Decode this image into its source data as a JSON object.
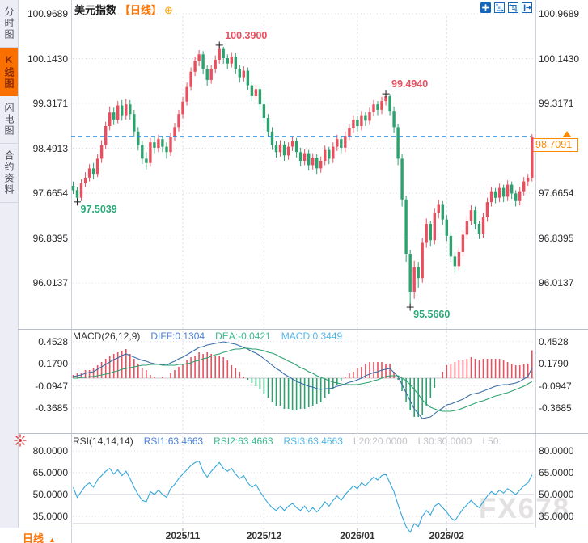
{
  "window": {
    "title": "美元指数",
    "period_tag": "【日线】",
    "add_icon_glyph": "⊕",
    "watermark": "FX678",
    "bottom_period_label": "日线",
    "bottom_period_arrow": "▲"
  },
  "sidebar": {
    "tabs": [
      {
        "label": "分时图",
        "active": false
      },
      {
        "label": "K线图",
        "active": true
      },
      {
        "label": "闪电图",
        "active": false
      },
      {
        "label": "合约资料",
        "active": false
      }
    ]
  },
  "toolbar": {
    "icons": [
      "crosshair-icon",
      "scale-x-icon",
      "scale-y-icon",
      "exit-icon"
    ]
  },
  "colors": {
    "up": "#e9505f",
    "down": "#2ca26e",
    "annotation_up": "#e9505f",
    "annotation_down": "#2aa876",
    "diff_line": "#3a6ea8",
    "dea_line": "#2ca26e",
    "rsi_line": "#35a7db",
    "price_line": "#1e88e5",
    "tag": "#ff8c00",
    "accent_orange": "#ff7300",
    "icon_blue": "#1466b8",
    "burst_red": "#e53030",
    "grid": "#dcdde6",
    "axis_text": "#2b2b2b",
    "watermark": "#e3e1e1"
  },
  "chart_data": {
    "type": "candlestick",
    "symbol": "美元指数",
    "period": "日线",
    "x_ticks": [
      {
        "label": "2025/11",
        "day": 27
      },
      {
        "label": "2025/12",
        "day": 47
      },
      {
        "label": "2026/01",
        "day": 70
      },
      {
        "label": "2026/02",
        "day": 92
      }
    ],
    "main": {
      "y_ticks": [
        "100.9689",
        "100.1430",
        "99.3171",
        "98.4913",
        "97.6654",
        "96.8395",
        "96.0137"
      ],
      "current_price": 98.7091,
      "current_price_label": "98.7091",
      "annotations": [
        {
          "text": "100.3900",
          "day": 36,
          "price": 100.39,
          "side": "high"
        },
        {
          "text": "99.4940",
          "day": 77,
          "price": 99.494,
          "side": "high"
        },
        {
          "text": "97.5039",
          "day": 1,
          "price": 97.5039,
          "side": "low"
        },
        {
          "text": "95.5660",
          "day": 83,
          "price": 95.566,
          "side": "low"
        }
      ],
      "candles": [
        [
          97.8,
          97.88,
          97.65,
          97.72
        ],
        [
          97.72,
          97.78,
          97.504,
          97.58
        ],
        [
          97.58,
          97.92,
          97.52,
          97.85
        ],
        [
          97.85,
          98.05,
          97.78,
          97.95
        ],
        [
          97.95,
          98.2,
          97.88,
          98.12
        ],
        [
          98.12,
          98.22,
          97.92,
          98.02
        ],
        [
          98.02,
          98.38,
          97.96,
          98.3
        ],
        [
          98.3,
          98.64,
          98.22,
          98.55
        ],
        [
          98.55,
          98.98,
          98.48,
          98.9
        ],
        [
          98.9,
          99.26,
          98.82,
          99.15
        ],
        [
          99.15,
          99.24,
          98.92,
          99.02
        ],
        [
          99.02,
          99.36,
          98.95,
          99.28
        ],
        [
          99.28,
          99.38,
          99.0,
          99.1
        ],
        [
          99.1,
          99.4,
          99.02,
          99.3
        ],
        [
          99.3,
          99.38,
          99.02,
          99.12
        ],
        [
          99.12,
          99.2,
          98.7,
          98.8
        ],
        [
          98.8,
          98.88,
          98.45,
          98.55
        ],
        [
          98.55,
          98.62,
          98.2,
          98.3
        ],
        [
          98.3,
          98.42,
          98.1,
          98.22
        ],
        [
          98.22,
          98.68,
          98.15,
          98.6
        ],
        [
          98.6,
          98.7,
          98.4,
          98.5
        ],
        [
          98.5,
          98.74,
          98.42,
          98.66
        ],
        [
          98.66,
          98.72,
          98.42,
          98.52
        ],
        [
          98.52,
          98.6,
          98.3,
          98.42
        ],
        [
          98.42,
          98.78,
          98.35,
          98.7
        ],
        [
          98.7,
          98.96,
          98.62,
          98.88
        ],
        [
          98.88,
          99.2,
          98.8,
          99.12
        ],
        [
          99.12,
          99.44,
          99.04,
          99.35
        ],
        [
          99.35,
          99.7,
          99.28,
          99.62
        ],
        [
          99.62,
          99.98,
          99.55,
          99.9
        ],
        [
          99.9,
          100.18,
          99.82,
          100.1
        ],
        [
          100.1,
          100.3,
          100.0,
          100.22
        ],
        [
          100.22,
          100.28,
          99.86,
          99.95
        ],
        [
          99.95,
          100.02,
          99.64,
          99.75
        ],
        [
          99.75,
          100.02,
          99.68,
          99.95
        ],
        [
          99.95,
          100.2,
          99.88,
          100.12
        ],
        [
          100.12,
          100.39,
          100.05,
          100.32
        ],
        [
          100.32,
          100.36,
          100.05,
          100.15
        ],
        [
          100.15,
          100.22,
          99.95,
          100.05
        ],
        [
          100.05,
          100.26,
          99.98,
          100.18
        ],
        [
          100.18,
          100.24,
          99.86,
          99.95
        ],
        [
          99.95,
          100.02,
          99.7,
          99.8
        ],
        [
          99.8,
          100.0,
          99.72,
          99.92
        ],
        [
          99.92,
          99.98,
          99.56,
          99.65
        ],
        [
          99.65,
          99.72,
          99.36,
          99.45
        ],
        [
          99.45,
          99.66,
          99.38,
          99.58
        ],
        [
          99.58,
          99.64,
          99.2,
          99.3
        ],
        [
          99.3,
          99.38,
          98.96,
          99.05
        ],
        [
          99.05,
          99.12,
          98.7,
          98.8
        ],
        [
          98.8,
          98.88,
          98.46,
          98.55
        ],
        [
          98.55,
          98.62,
          98.32,
          98.42
        ],
        [
          98.42,
          98.64,
          98.34,
          98.56
        ],
        [
          98.56,
          98.62,
          98.26,
          98.36
        ],
        [
          98.36,
          98.6,
          98.28,
          98.52
        ],
        [
          98.52,
          98.7,
          98.44,
          98.62
        ],
        [
          98.62,
          98.68,
          98.32,
          98.42
        ],
        [
          98.42,
          98.5,
          98.16,
          98.26
        ],
        [
          98.26,
          98.48,
          98.18,
          98.4
        ],
        [
          98.4,
          98.46,
          98.08,
          98.18
        ],
        [
          98.18,
          98.4,
          98.1,
          98.32
        ],
        [
          98.32,
          98.38,
          98.02,
          98.12
        ],
        [
          98.12,
          98.34,
          98.04,
          98.26
        ],
        [
          98.26,
          98.54,
          98.18,
          98.46
        ],
        [
          98.46,
          98.52,
          98.2,
          98.3
        ],
        [
          98.3,
          98.6,
          98.22,
          98.52
        ],
        [
          98.52,
          98.74,
          98.44,
          98.66
        ],
        [
          98.66,
          98.72,
          98.4,
          98.5
        ],
        [
          98.5,
          98.8,
          98.42,
          98.72
        ],
        [
          98.72,
          98.94,
          98.64,
          98.86
        ],
        [
          98.86,
          99.1,
          98.78,
          99.02
        ],
        [
          99.02,
          99.08,
          98.8,
          98.9
        ],
        [
          98.9,
          99.18,
          98.82,
          99.1
        ],
        [
          99.1,
          99.16,
          98.9,
          99.0
        ],
        [
          99.0,
          99.24,
          98.92,
          99.16
        ],
        [
          99.16,
          99.38,
          99.08,
          99.3
        ],
        [
          99.3,
          99.36,
          99.1,
          99.2
        ],
        [
          99.2,
          99.44,
          99.12,
          99.36
        ],
        [
          99.36,
          99.494,
          99.28,
          99.45
        ],
        [
          99.45,
          99.49,
          99.1,
          99.18
        ],
        [
          99.18,
          99.26,
          98.78,
          98.88
        ],
        [
          98.88,
          98.94,
          98.18,
          98.3
        ],
        [
          98.3,
          98.38,
          97.42,
          97.55
        ],
        [
          97.55,
          97.62,
          96.4,
          96.55
        ],
        [
          96.55,
          96.62,
          95.566,
          95.85
        ],
        [
          95.85,
          96.42,
          95.72,
          96.3
        ],
        [
          96.3,
          96.4,
          95.92,
          96.1
        ],
        [
          96.1,
          96.84,
          96.02,
          96.75
        ],
        [
          96.75,
          97.2,
          96.66,
          97.1
        ],
        [
          97.1,
          97.16,
          96.68,
          96.8
        ],
        [
          96.8,
          97.38,
          96.72,
          97.3
        ],
        [
          97.3,
          97.54,
          97.2,
          97.45
        ],
        [
          97.45,
          97.52,
          97.08,
          97.18
        ],
        [
          97.18,
          97.26,
          96.78,
          96.88
        ],
        [
          96.88,
          96.94,
          96.4,
          96.5
        ],
        [
          96.5,
          96.58,
          96.2,
          96.32
        ],
        [
          96.32,
          96.66,
          96.24,
          96.58
        ],
        [
          96.58,
          96.98,
          96.5,
          96.9
        ],
        [
          96.9,
          97.24,
          96.82,
          97.15
        ],
        [
          97.15,
          97.44,
          97.08,
          97.35
        ],
        [
          97.35,
          97.42,
          97.0,
          97.1
        ],
        [
          97.1,
          97.16,
          96.82,
          96.92
        ],
        [
          96.92,
          97.3,
          96.84,
          97.22
        ],
        [
          97.22,
          97.58,
          97.14,
          97.5
        ],
        [
          97.5,
          97.78,
          97.42,
          97.7
        ],
        [
          97.7,
          97.76,
          97.48,
          97.58
        ],
        [
          97.58,
          97.84,
          97.5,
          97.76
        ],
        [
          97.76,
          97.82,
          97.5,
          97.6
        ],
        [
          97.6,
          97.9,
          97.52,
          97.82
        ],
        [
          97.82,
          97.88,
          97.56,
          97.66
        ],
        [
          97.66,
          97.72,
          97.42,
          97.52
        ],
        [
          97.52,
          97.78,
          97.44,
          97.7
        ],
        [
          97.7,
          97.96,
          97.62,
          97.88
        ],
        [
          97.88,
          98.02,
          97.8,
          97.95
        ],
        [
          97.95,
          98.75,
          97.88,
          98.7091
        ]
      ]
    },
    "macd": {
      "title": "MACD(26,12,9)",
      "legend": [
        {
          "label": "DIFF:0.1304",
          "color": "#4a7fd4"
        },
        {
          "label": "DEA:-0.0421",
          "color": "#3cb98e"
        },
        {
          "label": "MACD:0.3449",
          "color": "#53b7e8"
        }
      ],
      "y_ticks": [
        "0.4528",
        "0.1790",
        "-0.0947",
        "-0.3685"
      ],
      "diff": [
        0.02,
        0.03,
        0.04,
        0.06,
        0.07,
        0.08,
        0.11,
        0.14,
        0.17,
        0.2,
        0.23,
        0.25,
        0.28,
        0.3,
        0.28,
        0.26,
        0.24,
        0.22,
        0.21,
        0.19,
        0.18,
        0.17,
        0.17,
        0.16,
        0.19,
        0.21,
        0.24,
        0.26,
        0.29,
        0.32,
        0.35,
        0.38,
        0.39,
        0.41,
        0.42,
        0.43,
        0.44,
        0.45,
        0.44,
        0.43,
        0.42,
        0.4,
        0.38,
        0.36,
        0.33,
        0.31,
        0.28,
        0.24,
        0.2,
        0.16,
        0.12,
        0.09,
        0.05,
        0.02,
        -0.01,
        -0.04,
        -0.06,
        -0.08,
        -0.1,
        -0.11,
        -0.13,
        -0.14,
        -0.13,
        -0.13,
        -0.12,
        -0.1,
        -0.09,
        -0.07,
        -0.05,
        -0.04,
        -0.02,
        0.0,
        0.03,
        0.05,
        0.07,
        0.08,
        0.1,
        0.11,
        0.12,
        0.07,
        0.02,
        -0.08,
        -0.18,
        -0.28,
        -0.38,
        -0.44,
        -0.5,
        -0.49,
        -0.48,
        -0.44,
        -0.4,
        -0.37,
        -0.33,
        -0.32,
        -0.3,
        -0.28,
        -0.26,
        -0.23,
        -0.2,
        -0.19,
        -0.18,
        -0.16,
        -0.14,
        -0.12,
        -0.1,
        -0.09,
        -0.08,
        -0.08,
        -0.07,
        -0.06,
        -0.04,
        -0.01,
        0.02,
        0.1304
      ],
      "dea": [
        0.0,
        0.0,
        0.01,
        0.01,
        0.02,
        0.02,
        0.03,
        0.04,
        0.05,
        0.06,
        0.08,
        0.09,
        0.11,
        0.12,
        0.13,
        0.14,
        0.15,
        0.16,
        0.16,
        0.17,
        0.17,
        0.17,
        0.16,
        0.16,
        0.16,
        0.16,
        0.17,
        0.17,
        0.18,
        0.19,
        0.21,
        0.22,
        0.24,
        0.25,
        0.27,
        0.29,
        0.3,
        0.32,
        0.33,
        0.35,
        0.36,
        0.36,
        0.37,
        0.37,
        0.36,
        0.36,
        0.35,
        0.34,
        0.32,
        0.31,
        0.29,
        0.26,
        0.24,
        0.21,
        0.19,
        0.16,
        0.13,
        0.11,
        0.08,
        0.06,
        0.03,
        0.01,
        -0.01,
        -0.03,
        -0.05,
        -0.06,
        -0.07,
        -0.08,
        -0.08,
        -0.08,
        -0.08,
        -0.07,
        -0.06,
        -0.05,
        -0.03,
        -0.02,
        0.0,
        0.02,
        0.03,
        0.03,
        0.03,
        0.0,
        -0.03,
        -0.08,
        -0.14,
        -0.2,
        -0.27,
        -0.32,
        -0.36,
        -0.38,
        -0.4,
        -0.41,
        -0.41,
        -0.41,
        -0.4,
        -0.39,
        -0.37,
        -0.35,
        -0.33,
        -0.31,
        -0.29,
        -0.28,
        -0.26,
        -0.24,
        -0.22,
        -0.21,
        -0.19,
        -0.18,
        -0.16,
        -0.14,
        -0.12,
        -0.1,
        -0.07,
        -0.0421
      ]
    },
    "rsi": {
      "title": "RSI(14,14,14)",
      "legend": [
        {
          "label": "RSI1:63.4663",
          "color": "#4a7fd4"
        },
        {
          "label": "RSI2:63.4663",
          "color": "#3cb98e"
        },
        {
          "label": "RSI3:63.4663",
          "color": "#53b7e8"
        },
        {
          "label": "L20:20.0000",
          "color": "#c3c3c9"
        },
        {
          "label": "L30:30.0000",
          "color": "#c3c3c9"
        },
        {
          "label": "L50:",
          "color": "#c3c3c9"
        }
      ],
      "y_ticks": [
        "80.0000",
        "65.0000",
        "50.0000",
        "35.0000"
      ],
      "levels": [
        20,
        30,
        50
      ],
      "values": [
        55,
        48,
        52,
        56,
        58,
        55,
        60,
        63,
        66,
        68,
        64,
        67,
        63,
        66,
        61,
        55,
        50,
        46,
        45,
        52,
        50,
        53,
        50,
        48,
        54,
        57,
        61,
        64,
        67,
        70,
        72,
        73,
        66,
        62,
        66,
        69,
        72,
        68,
        66,
        68,
        64,
        61,
        63,
        58,
        55,
        57,
        52,
        48,
        44,
        41,
        39,
        42,
        39,
        42,
        44,
        41,
        39,
        42,
        38,
        41,
        38,
        41,
        45,
        42,
        46,
        49,
        46,
        50,
        53,
        56,
        54,
        58,
        56,
        59,
        62,
        60,
        63,
        64,
        58,
        52,
        43,
        35,
        28,
        24,
        30,
        28,
        35,
        39,
        36,
        42,
        44,
        41,
        38,
        34,
        32,
        36,
        40,
        43,
        46,
        43,
        41,
        45,
        49,
        52,
        50,
        53,
        51,
        54,
        52,
        50,
        53,
        56,
        58,
        63.4663
      ]
    }
  }
}
